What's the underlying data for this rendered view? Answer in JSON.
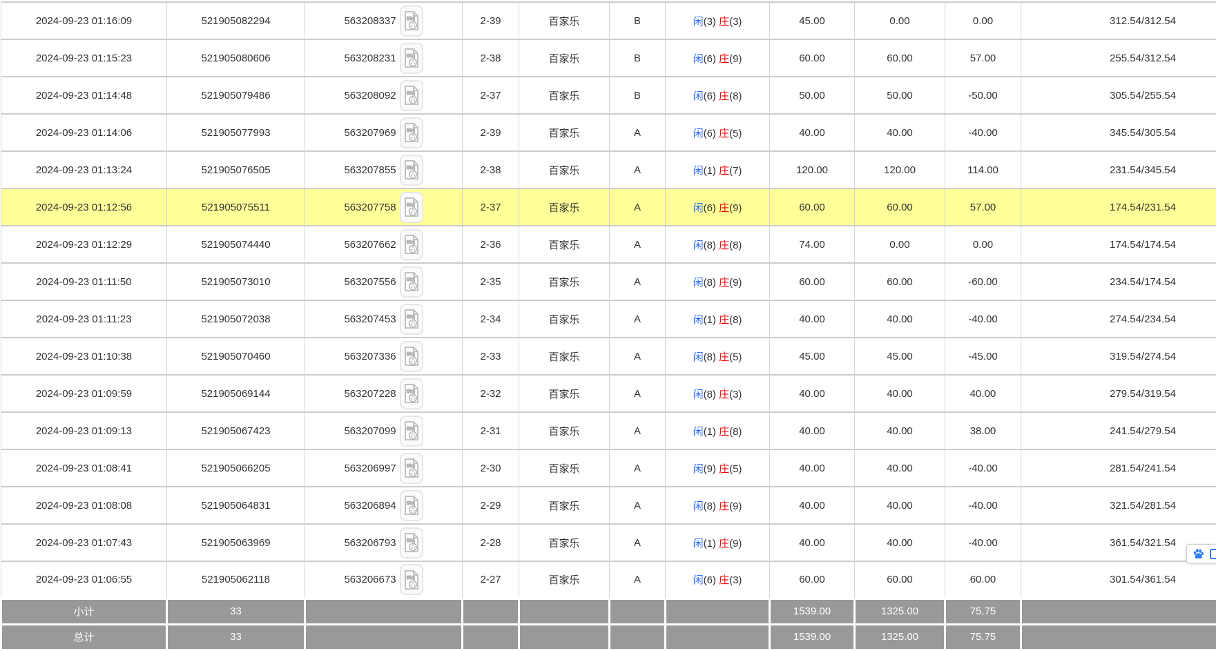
{
  "colors": {
    "accent_blue": "#2f6df6",
    "negative_red": "#f40000",
    "highlight_yellow": "#ffff99",
    "summary_gray": "#999999",
    "border_gray": "#cccccc"
  },
  "table": {
    "rows": [
      {
        "time": "2024-09-23 01:16:09",
        "order_id": "521905082294",
        "game_id": "563208337",
        "round": "2-39",
        "game_type": "百家乐",
        "table": "B",
        "result": {
          "xian_label": "闲",
          "xian_value": "(3)",
          "zhuang_label": "庄",
          "zhuang_value": "(3)"
        },
        "bet": "45.00",
        "valid": "0.00",
        "win_loss": "0.00",
        "balance": "312.54/312.54",
        "highlighted": false
      },
      {
        "time": "2024-09-23 01:15:23",
        "order_id": "521905080606",
        "game_id": "563208231",
        "round": "2-38",
        "game_type": "百家乐",
        "table": "B",
        "result": {
          "xian_label": "闲",
          "xian_value": "(6)",
          "zhuang_label": "庄",
          "zhuang_value": "(9)"
        },
        "bet": "60.00",
        "valid": "60.00",
        "win_loss": "57.00",
        "balance": "255.54/312.54",
        "highlighted": false
      },
      {
        "time": "2024-09-23 01:14:48",
        "order_id": "521905079486",
        "game_id": "563208092",
        "round": "2-37",
        "game_type": "百家乐",
        "table": "B",
        "result": {
          "xian_label": "闲",
          "xian_value": "(6)",
          "zhuang_label": "庄",
          "zhuang_value": "(8)"
        },
        "bet": "50.00",
        "valid": "50.00",
        "win_loss": "-50.00",
        "balance": "305.54/255.54",
        "highlighted": false
      },
      {
        "time": "2024-09-23 01:14:06",
        "order_id": "521905077993",
        "game_id": "563207969",
        "round": "2-39",
        "game_type": "百家乐",
        "table": "A",
        "result": {
          "xian_label": "闲",
          "xian_value": "(6)",
          "zhuang_label": "庄",
          "zhuang_value": "(5)"
        },
        "bet": "40.00",
        "valid": "40.00",
        "win_loss": "-40.00",
        "balance": "345.54/305.54",
        "highlighted": false
      },
      {
        "time": "2024-09-23 01:13:24",
        "order_id": "521905076505",
        "game_id": "563207855",
        "round": "2-38",
        "game_type": "百家乐",
        "table": "A",
        "result": {
          "xian_label": "闲",
          "xian_value": "(1)",
          "zhuang_label": "庄",
          "zhuang_value": "(7)"
        },
        "bet": "120.00",
        "valid": "120.00",
        "win_loss": "114.00",
        "balance": "231.54/345.54",
        "highlighted": false
      },
      {
        "time": "2024-09-23 01:12:56",
        "order_id": "521905075511",
        "game_id": "563207758",
        "round": "2-37",
        "game_type": "百家乐",
        "table": "A",
        "result": {
          "xian_label": "闲",
          "xian_value": "(6)",
          "zhuang_label": "庄",
          "zhuang_value": "(9)"
        },
        "bet": "60.00",
        "valid": "60.00",
        "win_loss": "57.00",
        "balance": "174.54/231.54",
        "highlighted": true
      },
      {
        "time": "2024-09-23 01:12:29",
        "order_id": "521905074440",
        "game_id": "563207662",
        "round": "2-36",
        "game_type": "百家乐",
        "table": "A",
        "result": {
          "xian_label": "闲",
          "xian_value": "(8)",
          "zhuang_label": "庄",
          "zhuang_value": "(8)"
        },
        "bet": "74.00",
        "valid": "0.00",
        "win_loss": "0.00",
        "balance": "174.54/174.54",
        "highlighted": false
      },
      {
        "time": "2024-09-23 01:11:50",
        "order_id": "521905073010",
        "game_id": "563207556",
        "round": "2-35",
        "game_type": "百家乐",
        "table": "A",
        "result": {
          "xian_label": "闲",
          "xian_value": "(8)",
          "zhuang_label": "庄",
          "zhuang_value": "(9)"
        },
        "bet": "60.00",
        "valid": "60.00",
        "win_loss": "-60.00",
        "balance": "234.54/174.54",
        "highlighted": false
      },
      {
        "time": "2024-09-23 01:11:23",
        "order_id": "521905072038",
        "game_id": "563207453",
        "round": "2-34",
        "game_type": "百家乐",
        "table": "A",
        "result": {
          "xian_label": "闲",
          "xian_value": "(1)",
          "zhuang_label": "庄",
          "zhuang_value": "(8)"
        },
        "bet": "40.00",
        "valid": "40.00",
        "win_loss": "-40.00",
        "balance": "274.54/234.54",
        "highlighted": false
      },
      {
        "time": "2024-09-23 01:10:38",
        "order_id": "521905070460",
        "game_id": "563207336",
        "round": "2-33",
        "game_type": "百家乐",
        "table": "A",
        "result": {
          "xian_label": "闲",
          "xian_value": "(8)",
          "zhuang_label": "庄",
          "zhuang_value": "(5)"
        },
        "bet": "45.00",
        "valid": "45.00",
        "win_loss": "-45.00",
        "balance": "319.54/274.54",
        "highlighted": false
      },
      {
        "time": "2024-09-23 01:09:59",
        "order_id": "521905069144",
        "game_id": "563207228",
        "round": "2-32",
        "game_type": "百家乐",
        "table": "A",
        "result": {
          "xian_label": "闲",
          "xian_value": "(8)",
          "zhuang_label": "庄",
          "zhuang_value": "(3)"
        },
        "bet": "40.00",
        "valid": "40.00",
        "win_loss": "40.00",
        "balance": "279.54/319.54",
        "highlighted": false
      },
      {
        "time": "2024-09-23 01:09:13",
        "order_id": "521905067423",
        "game_id": "563207099",
        "round": "2-31",
        "game_type": "百家乐",
        "table": "A",
        "result": {
          "xian_label": "闲",
          "xian_value": "(1)",
          "zhuang_label": "庄",
          "zhuang_value": "(8)"
        },
        "bet": "40.00",
        "valid": "40.00",
        "win_loss": "38.00",
        "balance": "241.54/279.54",
        "highlighted": false
      },
      {
        "time": "2024-09-23 01:08:41",
        "order_id": "521905066205",
        "game_id": "563206997",
        "round": "2-30",
        "game_type": "百家乐",
        "table": "A",
        "result": {
          "xian_label": "闲",
          "xian_value": "(9)",
          "zhuang_label": "庄",
          "zhuang_value": "(5)"
        },
        "bet": "40.00",
        "valid": "40.00",
        "win_loss": "-40.00",
        "balance": "281.54/241.54",
        "highlighted": false
      },
      {
        "time": "2024-09-23 01:08:08",
        "order_id": "521905064831",
        "game_id": "563206894",
        "round": "2-29",
        "game_type": "百家乐",
        "table": "A",
        "result": {
          "xian_label": "闲",
          "xian_value": "(8)",
          "zhuang_label": "庄",
          "zhuang_value": "(9)"
        },
        "bet": "40.00",
        "valid": "40.00",
        "win_loss": "-40.00",
        "balance": "321.54/281.54",
        "highlighted": false
      },
      {
        "time": "2024-09-23 01:07:43",
        "order_id": "521905063969",
        "game_id": "563206793",
        "round": "2-28",
        "game_type": "百家乐",
        "table": "A",
        "result": {
          "xian_label": "闲",
          "xian_value": "(1)",
          "zhuang_label": "庄",
          "zhuang_value": "(9)"
        },
        "bet": "40.00",
        "valid": "40.00",
        "win_loss": "-40.00",
        "balance": "361.54/321.54",
        "highlighted": false
      },
      {
        "time": "2024-09-23 01:06:55",
        "order_id": "521905062118",
        "game_id": "563206673",
        "round": "2-27",
        "game_type": "百家乐",
        "table": "A",
        "result": {
          "xian_label": "闲",
          "xian_value": "(6)",
          "zhuang_label": "庄",
          "zhuang_value": "(3)"
        },
        "bet": "60.00",
        "valid": "60.00",
        "win_loss": "60.00",
        "balance": "301.54/361.54",
        "highlighted": false
      }
    ],
    "summary_rows": [
      {
        "label": "小计",
        "count": "33",
        "bet": "1539.00",
        "valid": "1325.00",
        "win_loss": "75.75"
      },
      {
        "label": "总计",
        "count": "33",
        "bet": "1539.00",
        "valid": "1325.00",
        "win_loss": "75.75"
      }
    ]
  }
}
